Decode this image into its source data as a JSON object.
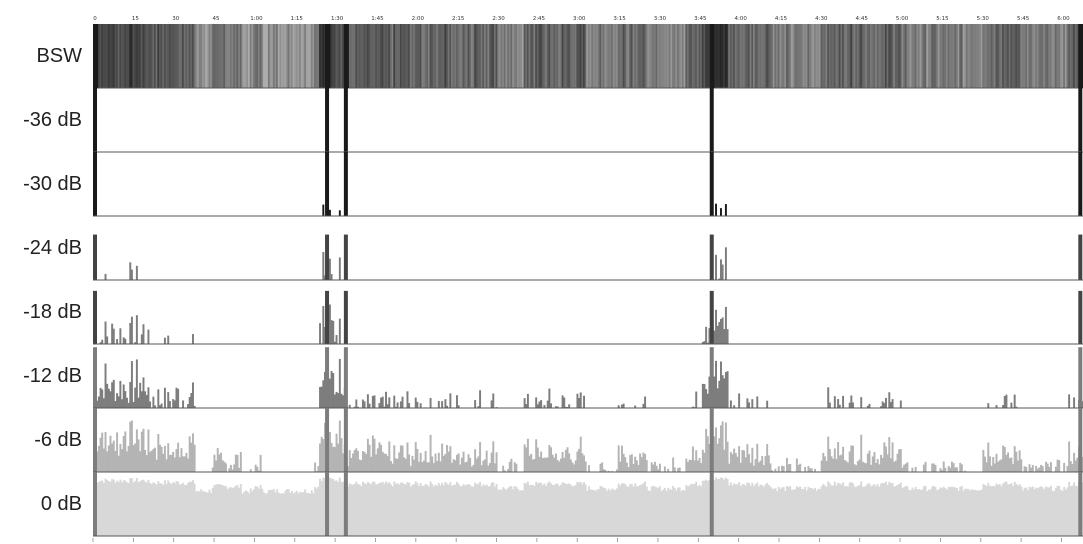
{
  "chart_data": {
    "type": "area",
    "title": "",
    "xlabel": "",
    "ylabel": "",
    "time_ticks": [
      "0",
      "15",
      "30",
      "45",
      "1:00",
      "1:15",
      "1:30",
      "1:45",
      "2:00",
      "2:15",
      "2:30",
      "2:45",
      "3:00",
      "3:15",
      "3:30",
      "3:45",
      "4:00",
      "4:15",
      "4:30",
      "4:45",
      "5:00",
      "5:15",
      "5:30",
      "5:45",
      "6:00"
    ],
    "duration_seconds": 368,
    "rows": [
      {
        "label": "BSW",
        "kind": "density"
      },
      {
        "label": "-36 dB",
        "kind": "threshold",
        "threshold_db": -36
      },
      {
        "label": "-30 dB",
        "kind": "threshold",
        "threshold_db": -30
      },
      {
        "label": "-24 dB",
        "kind": "threshold",
        "threshold_db": -24
      },
      {
        "label": "-18 dB",
        "kind": "threshold",
        "threshold_db": -18
      },
      {
        "label": "-12 dB",
        "kind": "threshold",
        "threshold_db": -12
      },
      {
        "label": "-6 dB",
        "kind": "threshold",
        "threshold_db": -6
      },
      {
        "label": "0 dB",
        "kind": "threshold",
        "threshold_db": 0
      }
    ],
    "section_breaks_seconds": [
      0,
      87,
      94,
      230,
      367
    ],
    "spikes": [
      {
        "t": 0,
        "level": 0.95
      },
      {
        "t": 87,
        "level": 0.95
      },
      {
        "t": 94,
        "level": 0.95
      },
      {
        "t": 230,
        "level": 0.95
      },
      {
        "t": 367,
        "level": 0.95
      }
    ],
    "colors": {
      "dark": "#1a1a1a",
      "mid": "#7d7d7d",
      "light": "#b4b4b4",
      "pale": "#d8d8d8",
      "divider": "#555555"
    }
  }
}
